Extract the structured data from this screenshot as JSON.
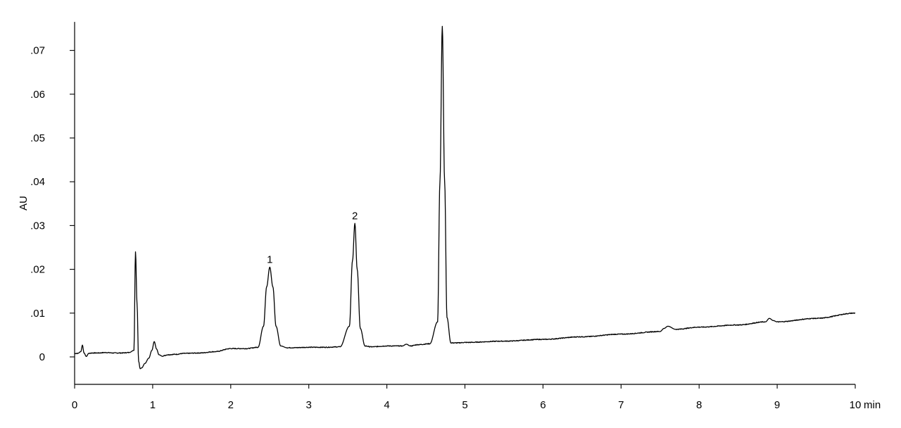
{
  "chart_data": {
    "type": "line",
    "title": "",
    "xlabel": "",
    "x_unit": "min",
    "ylabel": "AU",
    "xlim": [
      0,
      10
    ],
    "ylim": [
      -0.0065,
      0.0765
    ],
    "grid": false,
    "legend": "none",
    "x_ticks": [
      0,
      1,
      2,
      3,
      4,
      5,
      6,
      7,
      8,
      9,
      10
    ],
    "x_tick_labels": [
      "0",
      "1",
      "2",
      "3",
      "4",
      "5",
      "6",
      "7",
      "8",
      "9",
      "10"
    ],
    "y_ticks": [
      0,
      0.01,
      0.02,
      0.03,
      0.04,
      0.05,
      0.06,
      0.07
    ],
    "y_tick_labels": [
      "0",
      ".01",
      ".02",
      ".03",
      ".04",
      ".05",
      ".06",
      ".07"
    ],
    "series": [
      {
        "x": [
          0.0,
          0.04,
          0.08,
          0.1,
          0.12,
          0.15,
          0.18,
          0.22,
          0.3,
          0.4,
          0.5,
          0.6,
          0.7,
          0.76,
          0.78,
          0.8,
          0.82,
          0.84,
          0.86,
          0.9,
          0.95,
          0.99,
          1.02,
          1.05,
          1.08,
          1.12,
          1.2,
          1.3,
          1.4,
          1.6,
          1.8,
          2.0,
          2.2,
          2.35,
          2.42,
          2.46,
          2.5,
          2.54,
          2.58,
          2.64,
          2.72,
          2.8,
          3.0,
          3.2,
          3.4,
          3.52,
          3.56,
          3.59,
          3.62,
          3.66,
          3.72,
          3.8,
          4.0,
          4.2,
          4.25,
          4.3,
          4.4,
          4.55,
          4.65,
          4.68,
          4.71,
          4.74,
          4.77,
          4.82,
          4.9,
          5.0,
          5.5,
          6.0,
          6.5,
          7.0,
          7.5,
          7.55,
          7.6,
          7.7,
          8.0,
          8.5,
          8.85,
          8.9,
          8.95,
          9.0,
          9.5,
          10.0
        ],
        "y": [
          0.0008,
          0.0008,
          0.0012,
          0.0027,
          0.0009,
          0.0001,
          0.0008,
          0.0009,
          0.0009,
          0.001,
          0.0009,
          0.0009,
          0.001,
          0.0015,
          0.024,
          0.012,
          -0.001,
          -0.0027,
          -0.0025,
          -0.0015,
          -0.0003,
          0.0015,
          0.0035,
          0.0018,
          0.0005,
          0.0002,
          0.0005,
          0.0006,
          0.0008,
          0.0009,
          0.0012,
          0.0019,
          0.0019,
          0.0022,
          0.007,
          0.016,
          0.0205,
          0.016,
          0.007,
          0.0025,
          0.0021,
          0.0021,
          0.0022,
          0.0022,
          0.0023,
          0.007,
          0.022,
          0.0305,
          0.02,
          0.0065,
          0.0025,
          0.0023,
          0.0025,
          0.0025,
          0.0029,
          0.0025,
          0.0028,
          0.003,
          0.008,
          0.04,
          0.0755,
          0.04,
          0.009,
          0.0032,
          0.0032,
          0.0033,
          0.0036,
          0.004,
          0.0046,
          0.0052,
          0.0058,
          0.0065,
          0.007,
          0.0063,
          0.0068,
          0.0073,
          0.008,
          0.0088,
          0.0083,
          0.008,
          0.0088,
          0.01
        ]
      }
    ],
    "annotations": [
      {
        "text": "1",
        "x": 2.5,
        "y": 0.0205
      },
      {
        "text": "2",
        "x": 3.59,
        "y": 0.0305
      }
    ]
  }
}
